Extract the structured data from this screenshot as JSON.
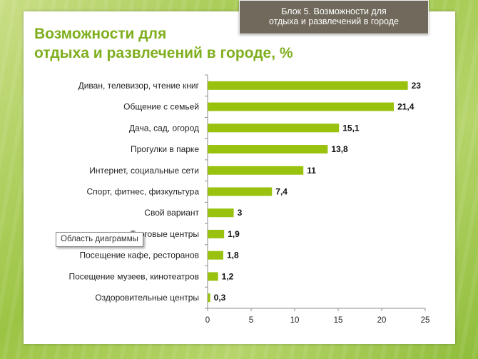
{
  "header": {
    "block_label_line1": "Блок 5. Возможности для",
    "block_label_line2": "отдыха и развлечений в городе",
    "title_line1": "Возможности для",
    "title_line2": "отдыха и развлечений в городе, %"
  },
  "tooltip": {
    "text": "Область диаграммы"
  },
  "colors": {
    "bar": "#99c20f",
    "title": "#7fae1e",
    "block_label_bg": "#716a5c"
  },
  "chart_data": {
    "type": "bar",
    "orientation": "horizontal",
    "title": "Возможности для отдыха и развлечений в городе, %",
    "categories": [
      "Диван, телевизор, чтение книг",
      "Общение с семьей",
      "Дача, сад, огород",
      "Прогулки в парке",
      "Интернет, социальные сети",
      "Спорт, фитнес, физкультура",
      "Свой вариант",
      "Торговые центры",
      "Посещение кафе, ресторанов",
      "Посещение музеев, кинотеатров",
      "Оздоровительные центры"
    ],
    "values": [
      23,
      21.4,
      15.1,
      13.8,
      11,
      7.4,
      3,
      1.9,
      1.8,
      1.2,
      0.3
    ],
    "value_labels": [
      "23",
      "21,4",
      "15,1",
      "13,8",
      "11",
      "7,4",
      "3",
      "1,9",
      "1,8",
      "1,2",
      "0,3"
    ],
    "xlim": [
      0,
      25
    ],
    "xticks": [
      0,
      5,
      10,
      15,
      20,
      25
    ],
    "grid": false,
    "legend": "none"
  }
}
